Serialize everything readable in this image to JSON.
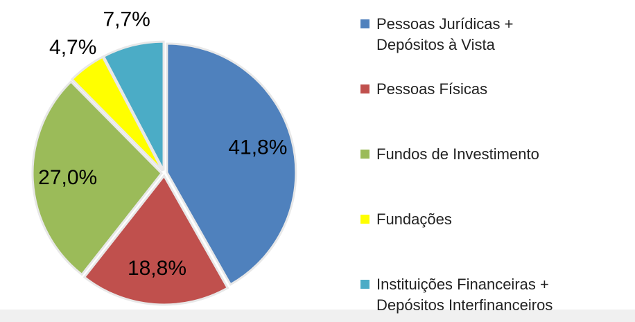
{
  "chart_data": {
    "type": "pie",
    "categories": [
      "Pessoas Jurídicas + Depósitos à Vista",
      "Pessoas Físicas",
      "Fundos de Investimento",
      "Fundações",
      "Instituições Financeiras + Depósitos Interfinanceiros"
    ],
    "values": [
      41.8,
      18.8,
      27.0,
      4.7,
      7.7
    ],
    "value_labels": [
      "41,8%",
      "18,8%",
      "27,0%",
      "4,7%",
      "7,7%"
    ],
    "colors": [
      "#4f81bd",
      "#c0504d",
      "#9bbb59",
      "#ffff00",
      "#4bacc6"
    ],
    "legend": "right"
  }
}
